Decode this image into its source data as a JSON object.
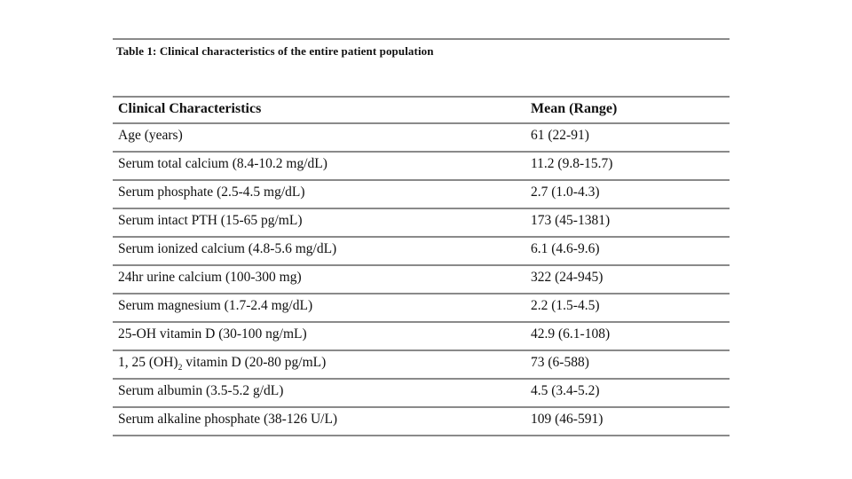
{
  "page": {
    "background": "#ffffff",
    "line_color": "#8a8a8a",
    "text_color": "#111111"
  },
  "table": {
    "title": "Table 1: Clinical characteristics of the entire patient population",
    "columns": [
      "Clinical Characteristics",
      "Mean (Range)"
    ],
    "rows": [
      {
        "characteristic": "Age (years)",
        "mean_range": "61 (22-91)"
      },
      {
        "characteristic": "Serum total calcium (8.4-10.2 mg/dL)",
        "mean_range": "11.2 (9.8-15.7)"
      },
      {
        "characteristic": "Serum phosphate (2.5-4.5 mg/dL)",
        "mean_range": "2.7 (1.0-4.3)"
      },
      {
        "characteristic": "Serum intact PTH (15-65 pg/mL)",
        "mean_range": "173 (45-1381)"
      },
      {
        "characteristic": "Serum ionized calcium (4.8-5.6 mg/dL)",
        "mean_range": "6.1 (4.6-9.6)"
      },
      {
        "characteristic": "24hr urine calcium (100-300 mg)",
        "mean_range": "322 (24-945)"
      },
      {
        "characteristic": "Serum magnesium (1.7-2.4 mg/dL)",
        "mean_range": "2.2 (1.5-4.5)"
      },
      {
        "characteristic": "25-OH vitamin D (30-100 ng/mL)",
        "mean_range": "42.9 (6.1-108)"
      },
      {
        "characteristic": "1, 25 (OH)₂ vitamin D (20-80 pg/mL)",
        "mean_range": "73 (6-588)"
      },
      {
        "characteristic": "Serum albumin (3.5-5.2 g/dL)",
        "mean_range": "4.5 (3.4-5.2)"
      },
      {
        "characteristic": "Serum alkaline phosphate (38-126 U/L)",
        "mean_range": "109 (46-591)"
      }
    ]
  }
}
